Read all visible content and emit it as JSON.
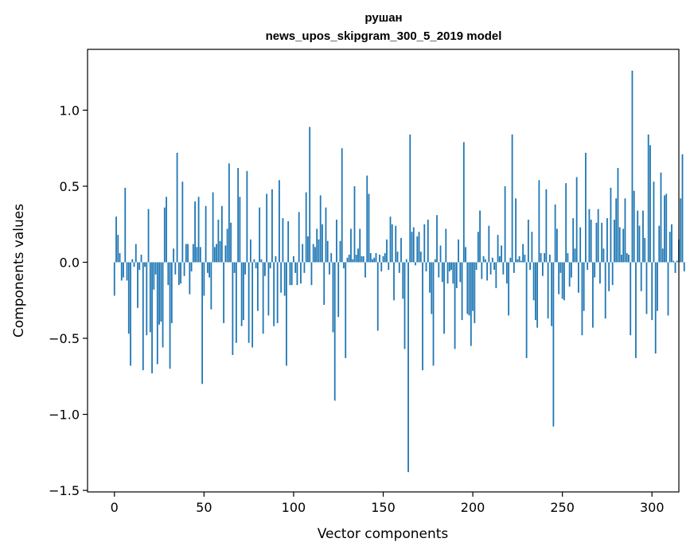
{
  "chart_data": {
    "type": "bar",
    "title": "рушан",
    "subtitle": "news_upos_skipgram_300_5_2019 model",
    "xlabel": "Vector components",
    "ylabel": "Components values",
    "xlim": [
      -15,
      315
    ],
    "ylim": [
      -1.51,
      1.4
    ],
    "xticks": [
      0,
      50,
      100,
      150,
      200,
      250,
      300
    ],
    "xtick_labels": [
      "0",
      "50",
      "100",
      "150",
      "200",
      "250",
      "300"
    ],
    "yticks": [
      -1.5,
      -1.0,
      -0.5,
      0.0,
      0.5,
      1.0
    ],
    "ytick_labels": [
      "−1.5",
      "−1.0",
      "−0.5",
      "0.0",
      "0.5",
      "1.0"
    ],
    "grid": false,
    "bar_color": "#1f77b4",
    "values": [
      -0.22,
      0.3,
      0.18,
      0.06,
      -0.12,
      -0.1,
      0.49,
      -0.12,
      -0.47,
      -0.68,
      0.02,
      -0.03,
      0.12,
      -0.3,
      -0.05,
      0.05,
      -0.71,
      -0.03,
      -0.48,
      0.35,
      -0.46,
      -0.73,
      -0.18,
      -0.08,
      -0.67,
      -0.41,
      -0.39,
      -0.56,
      0.36,
      0.43,
      -0.15,
      -0.7,
      -0.4,
      0.09,
      -0.08,
      0.72,
      -0.15,
      -0.14,
      0.53,
      -0.09,
      0.12,
      0.12,
      -0.21,
      -0.06,
      0.12,
      0.4,
      0.1,
      0.43,
      0.1,
      -0.8,
      -0.22,
      0.37,
      -0.07,
      -0.1,
      -0.31,
      0.46,
      0.1,
      0.12,
      0.28,
      0.14,
      0.37,
      -0.4,
      0.11,
      0.22,
      0.65,
      0.26,
      -0.61,
      -0.07,
      -0.53,
      0.62,
      0.43,
      -0.42,
      -0.38,
      -0.08,
      0.6,
      -0.53,
      0.15,
      -0.56,
      0.02,
      -0.04,
      -0.32,
      0.36,
      0.02,
      -0.47,
      -0.09,
      0.45,
      -0.35,
      -0.04,
      0.48,
      -0.42,
      0.04,
      -0.4,
      0.54,
      -0.2,
      0.29,
      -0.22,
      -0.68,
      0.27,
      -0.15,
      -0.15,
      0.04,
      -0.07,
      -0.15,
      0.33,
      -0.14,
      0.12,
      -0.07,
      0.46,
      0.17,
      0.89,
      -0.15,
      0.12,
      0.1,
      0.22,
      0.15,
      0.44,
      0.25,
      -0.28,
      0.36,
      0.14,
      -0.08,
      0.06,
      -0.46,
      -0.91,
      0.28,
      -0.36,
      0.14,
      0.75,
      -0.04,
      -0.63,
      0.03,
      0.05,
      0.22,
      0.02,
      0.5,
      0.05,
      0.09,
      0.22,
      0.04,
      0.04,
      -0.1,
      0.57,
      0.45,
      0.06,
      0.02,
      0.03,
      0.06,
      -0.45,
      0.05,
      -0.06,
      0.04,
      0.06,
      0.15,
      -0.05,
      0.3,
      0.25,
      -0.25,
      0.24,
      0.07,
      -0.07,
      0.16,
      -0.24,
      -0.57,
      0.02,
      -1.38,
      0.84,
      0.2,
      0.23,
      -0.02,
      0.17,
      0.2,
      0.07,
      -0.71,
      0.25,
      -0.06,
      0.28,
      -0.2,
      -0.34,
      -0.68,
      0.02,
      0.31,
      -0.1,
      0.11,
      -0.13,
      -0.47,
      0.22,
      -0.14,
      -0.06,
      -0.05,
      -0.14,
      -0.57,
      -0.17,
      0.15,
      -0.13,
      -0.38,
      0.79,
      0.1,
      -0.34,
      -0.35,
      -0.55,
      -0.32,
      -0.4,
      -0.05,
      0.2,
      0.34,
      -0.11,
      0.04,
      0.02,
      -0.12,
      0.24,
      -0.08,
      0.03,
      -0.05,
      -0.17,
      0.18,
      0.04,
      0.11,
      -0.08,
      0.5,
      -0.14,
      -0.35,
      0.03,
      0.84,
      -0.07,
      0.42,
      0.02,
      0.04,
      0.01,
      0.12,
      0.05,
      -0.63,
      0.28,
      -0.05,
      0.2,
      -0.25,
      -0.38,
      -0.43,
      0.54,
      0.06,
      -0.09,
      0.06,
      0.48,
      -0.37,
      0.05,
      -0.42,
      -1.08,
      0.38,
      0.22,
      -0.21,
      -0.07,
      -0.24,
      -0.25,
      0.52,
      0.06,
      -0.16,
      -0.1,
      0.29,
      0.09,
      0.56,
      -0.2,
      0.23,
      -0.48,
      -0.32,
      0.72,
      -0.05,
      0.35,
      0.28,
      -0.43,
      -0.1,
      0.26,
      0.35,
      -0.14,
      0.26,
      0.09,
      -0.37,
      0.29,
      -0.19,
      0.49,
      -0.15,
      0.28,
      0.42,
      0.62,
      0.23,
      0.05,
      0.22,
      0.42,
      0.06,
      0.05,
      -0.48,
      1.26,
      0.47,
      -0.63,
      0.34,
      0.24,
      -0.19,
      0.34,
      0.16,
      -0.34,
      0.84,
      0.77,
      -0.38,
      0.53,
      -0.6,
      -0.32,
      0.24,
      0.59,
      0.09,
      0.44,
      0.45,
      -0.35,
      0.2,
      0.25,
      0.01,
      -0.07,
      0.01,
      0.15,
      0.42,
      0.71,
      -0.06
    ]
  }
}
